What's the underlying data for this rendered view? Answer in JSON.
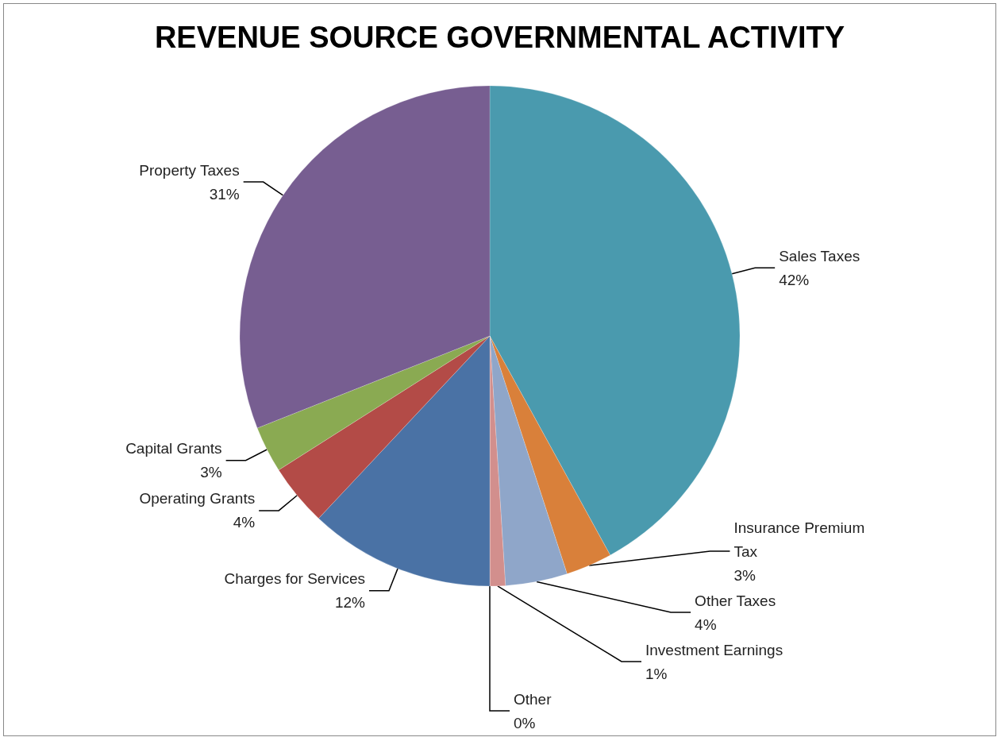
{
  "chart_data": {
    "type": "pie",
    "title": "REVENUE SOURCE GOVERNMENTAL ACTIVITY",
    "categories": [
      "Sales Taxes",
      "Insurance Premium Tax",
      "Other Taxes",
      "Investment Earnings",
      "Other",
      "Charges for Services",
      "Operating Grants",
      "Capital Grants",
      "Property Taxes"
    ],
    "values": [
      42,
      3,
      4,
      1,
      0,
      12,
      4,
      3,
      31
    ],
    "value_labels": [
      "42%",
      "3%",
      "4%",
      "1%",
      "0%",
      "12%",
      "4%",
      "3%",
      "31%"
    ],
    "colors": [
      "#4a9aae",
      "#d9803a",
      "#8fa6c9",
      "#d28f8d",
      "#9bbb59",
      "#4a72a5",
      "#b34b47",
      "#8aaa52",
      "#775e91"
    ],
    "legend": false
  }
}
